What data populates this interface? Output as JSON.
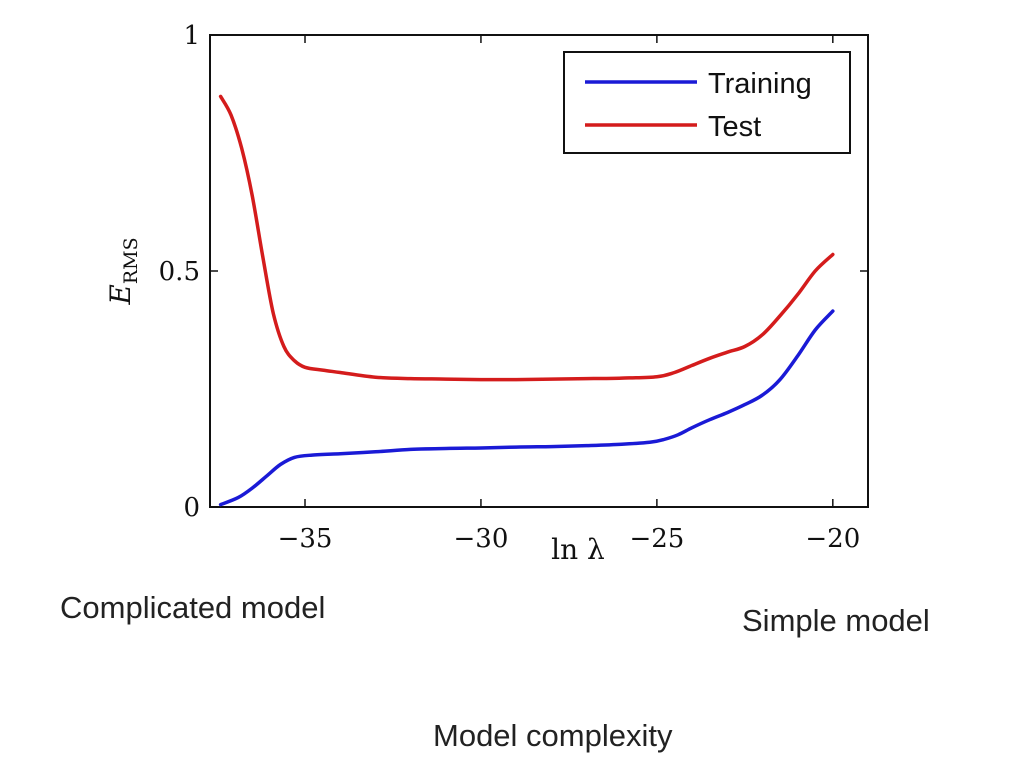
{
  "chart_data": {
    "type": "line",
    "xlabel": "ln λ",
    "ylabel": "E",
    "ylabel_sub": "RMS",
    "xlim": [
      -37.7,
      -19.0
    ],
    "ylim": [
      0,
      1
    ],
    "xticks": [
      -35,
      -30,
      -25,
      -20
    ],
    "xtick_labels": [
      "−35",
      "−30",
      "−25",
      "−20"
    ],
    "yticks": [
      0,
      0.5,
      1
    ],
    "ytick_labels": [
      "0",
      "0.5",
      "1"
    ],
    "grid": false,
    "legend_position": "top-right",
    "series": [
      {
        "name": "Training",
        "color": "#1a1ad6",
        "x": [
          -37.4,
          -36.9,
          -36.5,
          -36.1,
          -35.7,
          -35.3,
          -34.8,
          -34.0,
          -33.0,
          -32.0,
          -31.0,
          -30.0,
          -29.0,
          -28.0,
          -27.0,
          -26.0,
          -25.2,
          -24.8,
          -24.4,
          -24.0,
          -23.5,
          -23.0,
          -22.5,
          -22.0,
          -21.5,
          -21.0,
          -20.5,
          -20.0
        ],
        "y": [
          0.005,
          0.02,
          0.04,
          0.065,
          0.09,
          0.105,
          0.11,
          0.113,
          0.117,
          0.122,
          0.124,
          0.125,
          0.127,
          0.128,
          0.13,
          0.133,
          0.137,
          0.143,
          0.153,
          0.168,
          0.185,
          0.2,
          0.217,
          0.237,
          0.27,
          0.32,
          0.375,
          0.415
        ]
      },
      {
        "name": "Test",
        "color": "#d41c1c",
        "x": [
          -37.4,
          -37.1,
          -36.8,
          -36.5,
          -36.2,
          -35.9,
          -35.6,
          -35.3,
          -35.0,
          -34.5,
          -34.0,
          -33.0,
          -32.0,
          -31.0,
          -30.0,
          -29.0,
          -28.0,
          -27.0,
          -26.0,
          -25.0,
          -24.5,
          -24.0,
          -23.5,
          -23.0,
          -22.5,
          -22.0,
          -21.5,
          -21.0,
          -20.5,
          -20.0
        ],
        "y": [
          0.87,
          0.83,
          0.76,
          0.66,
          0.53,
          0.41,
          0.34,
          0.31,
          0.296,
          0.29,
          0.285,
          0.275,
          0.272,
          0.271,
          0.27,
          0.27,
          0.271,
          0.272,
          0.273,
          0.276,
          0.285,
          0.3,
          0.315,
          0.328,
          0.34,
          0.365,
          0.405,
          0.45,
          0.5,
          0.535
        ]
      }
    ]
  },
  "captions": {
    "left": "Complicated model",
    "right": "Simple model",
    "bottom": "Model complexity"
  }
}
